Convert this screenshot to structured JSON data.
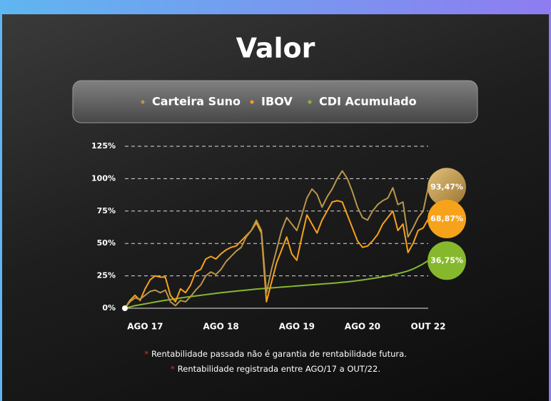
{
  "chart_data": {
    "type": "line",
    "title": "Valor",
    "categories": [
      null,
      null,
      null,
      null,
      "AGO 17",
      null,
      null,
      null,
      null,
      null,
      null,
      null,
      null,
      null,
      null,
      null,
      null,
      null,
      null,
      "AGO 18",
      null,
      null,
      null,
      null,
      null,
      null,
      null,
      null,
      null,
      null,
      null,
      null,
      null,
      null,
      "AGO 19",
      null,
      null,
      null,
      null,
      null,
      null,
      null,
      null,
      null,
      null,
      null,
      null,
      "AGO 20",
      null,
      null,
      null,
      null,
      null,
      null,
      null,
      null,
      null,
      null,
      null,
      null,
      "OUT 22"
    ],
    "ylim": [
      0,
      125
    ],
    "yticks": [
      {
        "value": 0,
        "label": "0%"
      },
      {
        "value": 25,
        "label": "25%"
      },
      {
        "value": 50,
        "label": "50%"
      },
      {
        "value": 75,
        "label": "75%"
      },
      {
        "value": 100,
        "label": "100%"
      },
      {
        "value": 125,
        "label": "125%"
      }
    ],
    "grid": true,
    "series": [
      {
        "name": "Carteira Suno",
        "color": "#b9964a",
        "values": [
          0,
          5,
          8,
          7,
          10,
          13,
          14,
          12,
          14,
          5,
          2,
          6,
          5,
          9,
          14,
          18,
          25,
          28,
          26,
          30,
          36,
          40,
          44,
          47,
          55,
          60,
          68,
          60,
          12,
          30,
          45,
          60,
          70,
          65,
          60,
          72,
          85,
          92,
          88,
          78,
          86,
          92,
          100,
          106,
          100,
          90,
          78,
          70,
          68,
          75,
          80,
          83,
          85,
          93,
          80,
          82,
          55,
          62,
          70,
          75,
          93.47
        ],
        "value_labels": [
          null,
          null,
          null,
          null,
          null,
          null,
          null,
          null,
          null,
          null,
          null,
          null,
          null,
          null,
          null,
          null,
          null,
          null,
          null,
          null,
          null,
          null,
          null,
          null,
          null,
          null,
          null,
          null,
          null,
          null,
          null,
          null,
          null,
          null,
          null,
          null,
          null,
          null,
          null,
          null,
          null,
          null,
          null,
          null,
          null,
          null,
          null,
          null,
          null,
          null,
          null,
          null,
          null,
          null,
          null,
          null,
          null,
          null,
          null,
          null,
          "93,47%"
        ]
      },
      {
        "name": "IBOV",
        "color": "#f7a21b",
        "values": [
          0,
          6,
          10,
          6,
          15,
          22,
          25,
          24,
          24,
          10,
          5,
          15,
          12,
          18,
          28,
          30,
          38,
          40,
          38,
          42,
          45,
          47,
          48,
          52,
          56,
          60,
          66,
          58,
          5,
          20,
          35,
          45,
          55,
          42,
          37,
          55,
          72,
          65,
          58,
          68,
          75,
          82,
          83,
          82,
          72,
          62,
          52,
          47,
          48,
          52,
          57,
          65,
          70,
          75,
          60,
          65,
          43,
          50,
          60,
          62,
          68.87
        ],
        "value_labels": [
          null,
          null,
          null,
          null,
          null,
          null,
          null,
          null,
          null,
          null,
          null,
          null,
          null,
          null,
          null,
          null,
          null,
          null,
          null,
          null,
          null,
          null,
          null,
          null,
          null,
          null,
          null,
          null,
          null,
          null,
          null,
          null,
          null,
          null,
          null,
          null,
          null,
          null,
          null,
          null,
          null,
          null,
          null,
          null,
          null,
          null,
          null,
          null,
          null,
          null,
          null,
          null,
          null,
          null,
          null,
          null,
          null,
          null,
          null,
          null,
          "68,87%"
        ]
      },
      {
        "name": "CDI Acumulado",
        "color": "#86b82e",
        "values": [
          0,
          1,
          2,
          2.7,
          3.4,
          4.1,
          4.8,
          5.5,
          6.1,
          6.7,
          7.3,
          7.9,
          8.5,
          9,
          9.5,
          10,
          10.5,
          11,
          11.5,
          12,
          12.4,
          12.8,
          13.2,
          13.6,
          14,
          14.4,
          14.8,
          15.1,
          15.4,
          15.7,
          16,
          16.3,
          16.6,
          16.9,
          17.2,
          17.5,
          17.8,
          18.1,
          18.4,
          18.7,
          19,
          19.3,
          19.6,
          20,
          20.4,
          20.8,
          21.3,
          21.8,
          22.4,
          23,
          23.6,
          24.3,
          25,
          25.8,
          26.7,
          27.7,
          28.8,
          30.3,
          32.2,
          34.3,
          36.75
        ],
        "value_labels": [
          null,
          null,
          null,
          null,
          null,
          null,
          null,
          null,
          null,
          null,
          null,
          null,
          null,
          null,
          null,
          null,
          null,
          null,
          null,
          null,
          null,
          null,
          null,
          null,
          null,
          null,
          null,
          null,
          null,
          null,
          null,
          null,
          null,
          null,
          null,
          null,
          null,
          null,
          null,
          null,
          null,
          null,
          null,
          null,
          null,
          null,
          null,
          null,
          null,
          null,
          null,
          null,
          null,
          null,
          null,
          null,
          null,
          null,
          null,
          null,
          "36,75%"
        ]
      }
    ],
    "footnotes": [
      {
        "marker": "*",
        "text": "Rentabilidade passada não é garantia de rentabilidade futura."
      },
      {
        "marker": "*",
        "text": "Rentabilidade registrada entre AGO/17 a OUT/22."
      }
    ]
  }
}
